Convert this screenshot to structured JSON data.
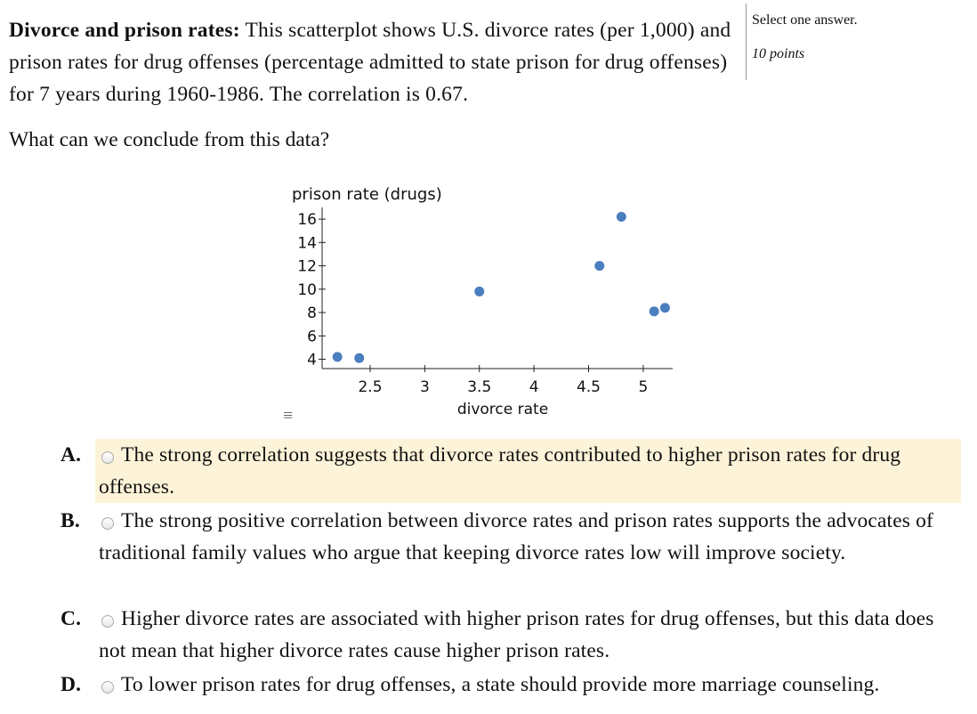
{
  "question": {
    "title": "Divorce and prison rates:",
    "text": "This scatterplot shows U.S. divorce rates (per 1,000) and prison rates for drug offenses (percentage admitted to state prison for drug offenses) for 7 years during 1960-1986. The correlation is 0.67.",
    "prompt": "What can we conclude from this data?"
  },
  "side": {
    "instruction": "Select one answer.",
    "points": "10 points"
  },
  "chart_data": {
    "type": "scatter",
    "title": "",
    "xlabel": "divorce rate",
    "ylabel": "prison rate (drugs)",
    "xlim": [
      2.06,
      5.27
    ],
    "ylim": [
      3.2,
      17
    ],
    "xticks": [
      "2.5",
      "3",
      "3.5",
      "4",
      "4.5",
      "5"
    ],
    "yticks": [
      "4",
      "6",
      "8",
      "10",
      "12",
      "14",
      "16"
    ],
    "points": [
      [
        2.2,
        4.2
      ],
      [
        2.4,
        4.1
      ],
      [
        3.5,
        9.8
      ],
      [
        4.6,
        12.0
      ],
      [
        4.8,
        16.2
      ],
      [
        5.1,
        8.1
      ],
      [
        5.2,
        8.4
      ]
    ],
    "color": "#4a7ebf",
    "grid": false,
    "menu_icon": "hamburger-icon"
  },
  "options": [
    {
      "letter": "A.",
      "text": "The strong correlation suggests that divorce rates contributed to higher prison rates for drug offenses."
    },
    {
      "letter": "B.",
      "text": "The strong positive correlation between divorce rates and prison rates supports the advocates of traditional family values who argue that keeping divorce rates low will improve society."
    },
    {
      "letter": "C.",
      "text": "Higher divorce rates are associated with higher prison rates for drug offenses, but this data does not mean that higher divorce rates cause higher prison rates."
    },
    {
      "letter": "D.",
      "text": "To lower prison rates for drug offenses, a state should provide more marriage counseling."
    }
  ],
  "highlight_color": "#fdf3d8"
}
